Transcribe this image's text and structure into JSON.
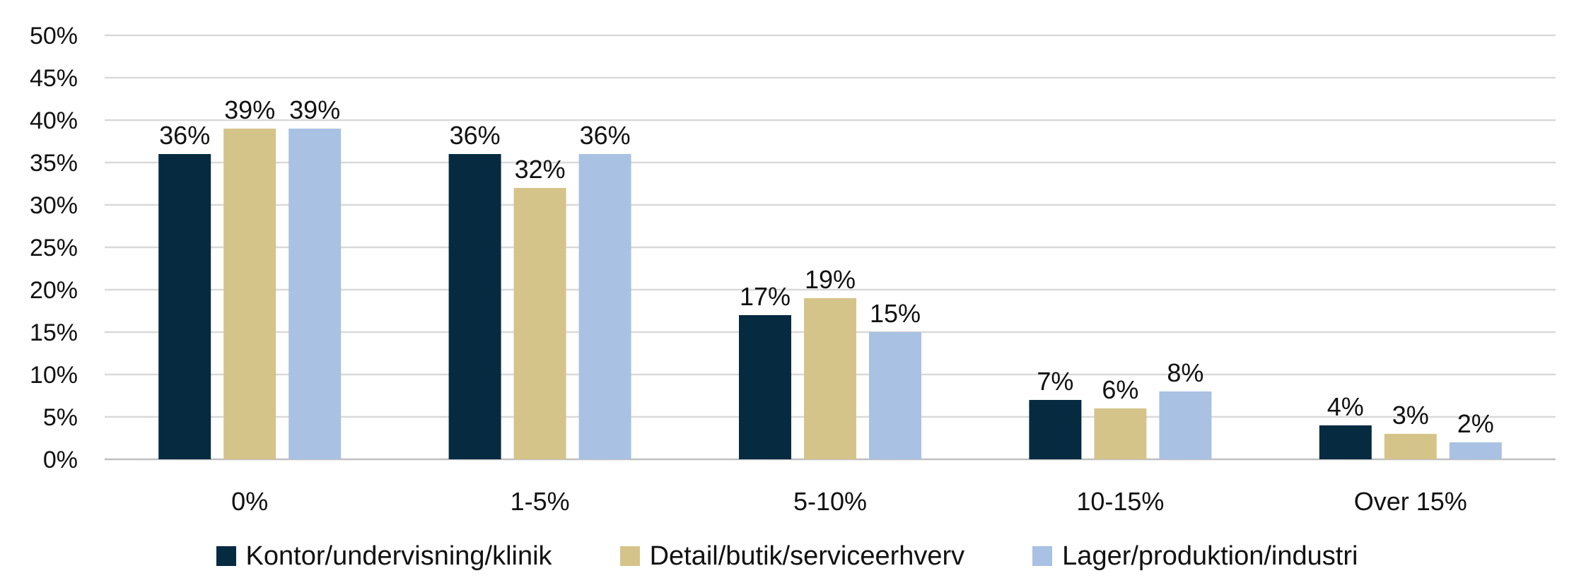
{
  "chart_data": {
    "type": "bar",
    "categories": [
      "0%",
      "1-5%",
      "5-10%",
      "10-15%",
      "Over 15%"
    ],
    "series": [
      {
        "name": "Kontor/undervisning/klinik",
        "color": "#062b40",
        "values": [
          36,
          36,
          17,
          7,
          4
        ],
        "labels": [
          "36%",
          "36%",
          "17%",
          "7%",
          "4%"
        ]
      },
      {
        "name": "Detail/butik/serviceerhverv",
        "color": "#d5c48a",
        "values": [
          39,
          32,
          19,
          6,
          3
        ],
        "labels": [
          "39%",
          "32%",
          "19%",
          "6%",
          "3%"
        ]
      },
      {
        "name": "Lager/produktion/industri",
        "color": "#a9c1e2",
        "values": [
          39,
          36,
          15,
          8,
          2
        ],
        "labels": [
          "39%",
          "36%",
          "15%",
          "8%",
          "2%"
        ]
      }
    ],
    "ylim": [
      0,
      50
    ],
    "yticks": [
      0,
      5,
      10,
      15,
      20,
      25,
      30,
      35,
      40,
      45,
      50
    ],
    "ytick_labels": [
      "0%",
      "5%",
      "10%",
      "15%",
      "20%",
      "25%",
      "30%",
      "35%",
      "40%",
      "45%",
      "50%"
    ],
    "grid": true,
    "legend_position": "bottom"
  }
}
